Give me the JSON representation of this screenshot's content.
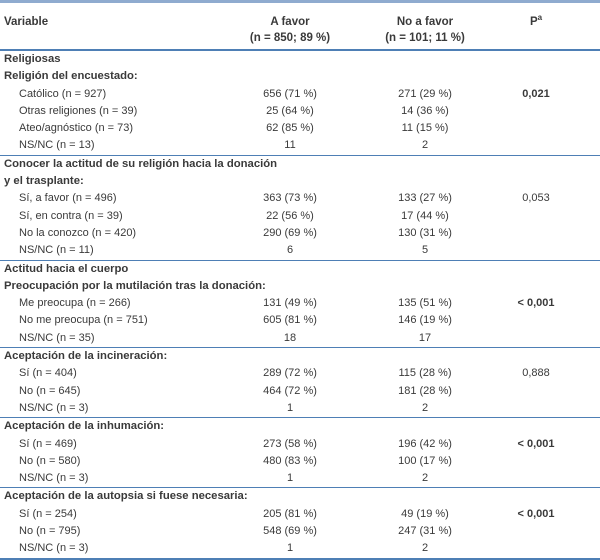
{
  "colors": {
    "rule_blue": "#4e7fb5",
    "rule_blue_light": "#8fabcf",
    "text": "#3a3a3a"
  },
  "header": {
    "variable": "Variable",
    "a_favor_line1": "A favor",
    "a_favor_line2": "(n = 850; 89 %)",
    "no_favor_line1": "No a favor",
    "no_favor_line2": "(n = 101; 11 %)",
    "p_label": "P",
    "p_superscript": "a"
  },
  "sections": [
    {
      "rows": [
        {
          "label": "Religiosas"
        },
        {
          "label": "Religión del encuestado:"
        },
        {
          "label": "Católico (n = 927)",
          "a_favor": "656 (71 %)",
          "no_favor": "271 (29 %)",
          "p": "0,021"
        },
        {
          "label": "Otras religiones (n = 39)",
          "a_favor": "25 (64 %)",
          "no_favor": "14 (36 %)"
        },
        {
          "label": "Ateo/agnóstico (n = 73)",
          "a_favor": "62 (85 %)",
          "no_favor": "11 (15 %)"
        },
        {
          "label": "NS/NC (n = 13)",
          "a_favor": "11",
          "no_favor": "2"
        }
      ]
    },
    {
      "rows": [
        {
          "label": "Conocer la actitud de su religión hacia la donación"
        },
        {
          "label": "y el trasplante:"
        },
        {
          "label": "Sí, a favor (n = 496)",
          "a_favor": "363 (73 %)",
          "no_favor": "133 (27 %)",
          "p": "0,053"
        },
        {
          "label": "Sí, en contra (n = 39)",
          "a_favor": "22 (56 %)",
          "no_favor": "17 (44 %)"
        },
        {
          "label": "No la conozco (n = 420)",
          "a_favor": "290 (69 %)",
          "no_favor": "130 (31 %)"
        },
        {
          "label": "NS/NC (n = 11)",
          "a_favor": "6",
          "no_favor": "5"
        }
      ]
    },
    {
      "rows": [
        {
          "label": "Actitud hacia el cuerpo"
        },
        {
          "label": "Preocupación por la mutilación tras la donación:"
        },
        {
          "label": "Me preocupa (n = 266)",
          "a_favor": "131 (49 %)",
          "no_favor": "135 (51 %)",
          "p": "< 0,001"
        },
        {
          "label": "No me preocupa (n = 751)",
          "a_favor": "605 (81 %)",
          "no_favor": "146 (19 %)"
        },
        {
          "label": "NS/NC (n = 35)",
          "a_favor": "18",
          "no_favor": "17"
        }
      ]
    },
    {
      "rows": [
        {
          "label": "Aceptación de la incineración:"
        },
        {
          "label": "Sí (n = 404)",
          "a_favor": "289 (72 %)",
          "no_favor": "115 (28 %)",
          "p": "0,888"
        },
        {
          "label": "No (n = 645)",
          "a_favor": "464 (72 %)",
          "no_favor": "181 (28 %)"
        },
        {
          "label": "NS/NC (n = 3)",
          "a_favor": "1",
          "no_favor": "2"
        }
      ]
    },
    {
      "rows": [
        {
          "label": "Aceptación de la inhumación:"
        },
        {
          "label": "Sí (n = 469)",
          "a_favor": "273 (58 %)",
          "no_favor": "196 (42 %)",
          "p": "< 0,001"
        },
        {
          "label": "No (n = 580)",
          "a_favor": "480 (83 %)",
          "no_favor": "100 (17 %)"
        },
        {
          "label": "NS/NC (n = 3)",
          "a_favor": "1",
          "no_favor": "2"
        }
      ]
    },
    {
      "rows": [
        {
          "label": "Aceptación de la autopsia si fuese necesaria:"
        },
        {
          "label": "Sí (n = 254)",
          "a_favor": "205 (81 %)",
          "no_favor": "49 (19 %)",
          "p": "< 0,001"
        },
        {
          "label": "No (n = 795)",
          "a_favor": "548 (69 %)",
          "no_favor": "247 (31 %)"
        },
        {
          "label": "NS/NC (n = 3)",
          "a_favor": "1",
          "no_favor": "2"
        }
      ]
    }
  ]
}
